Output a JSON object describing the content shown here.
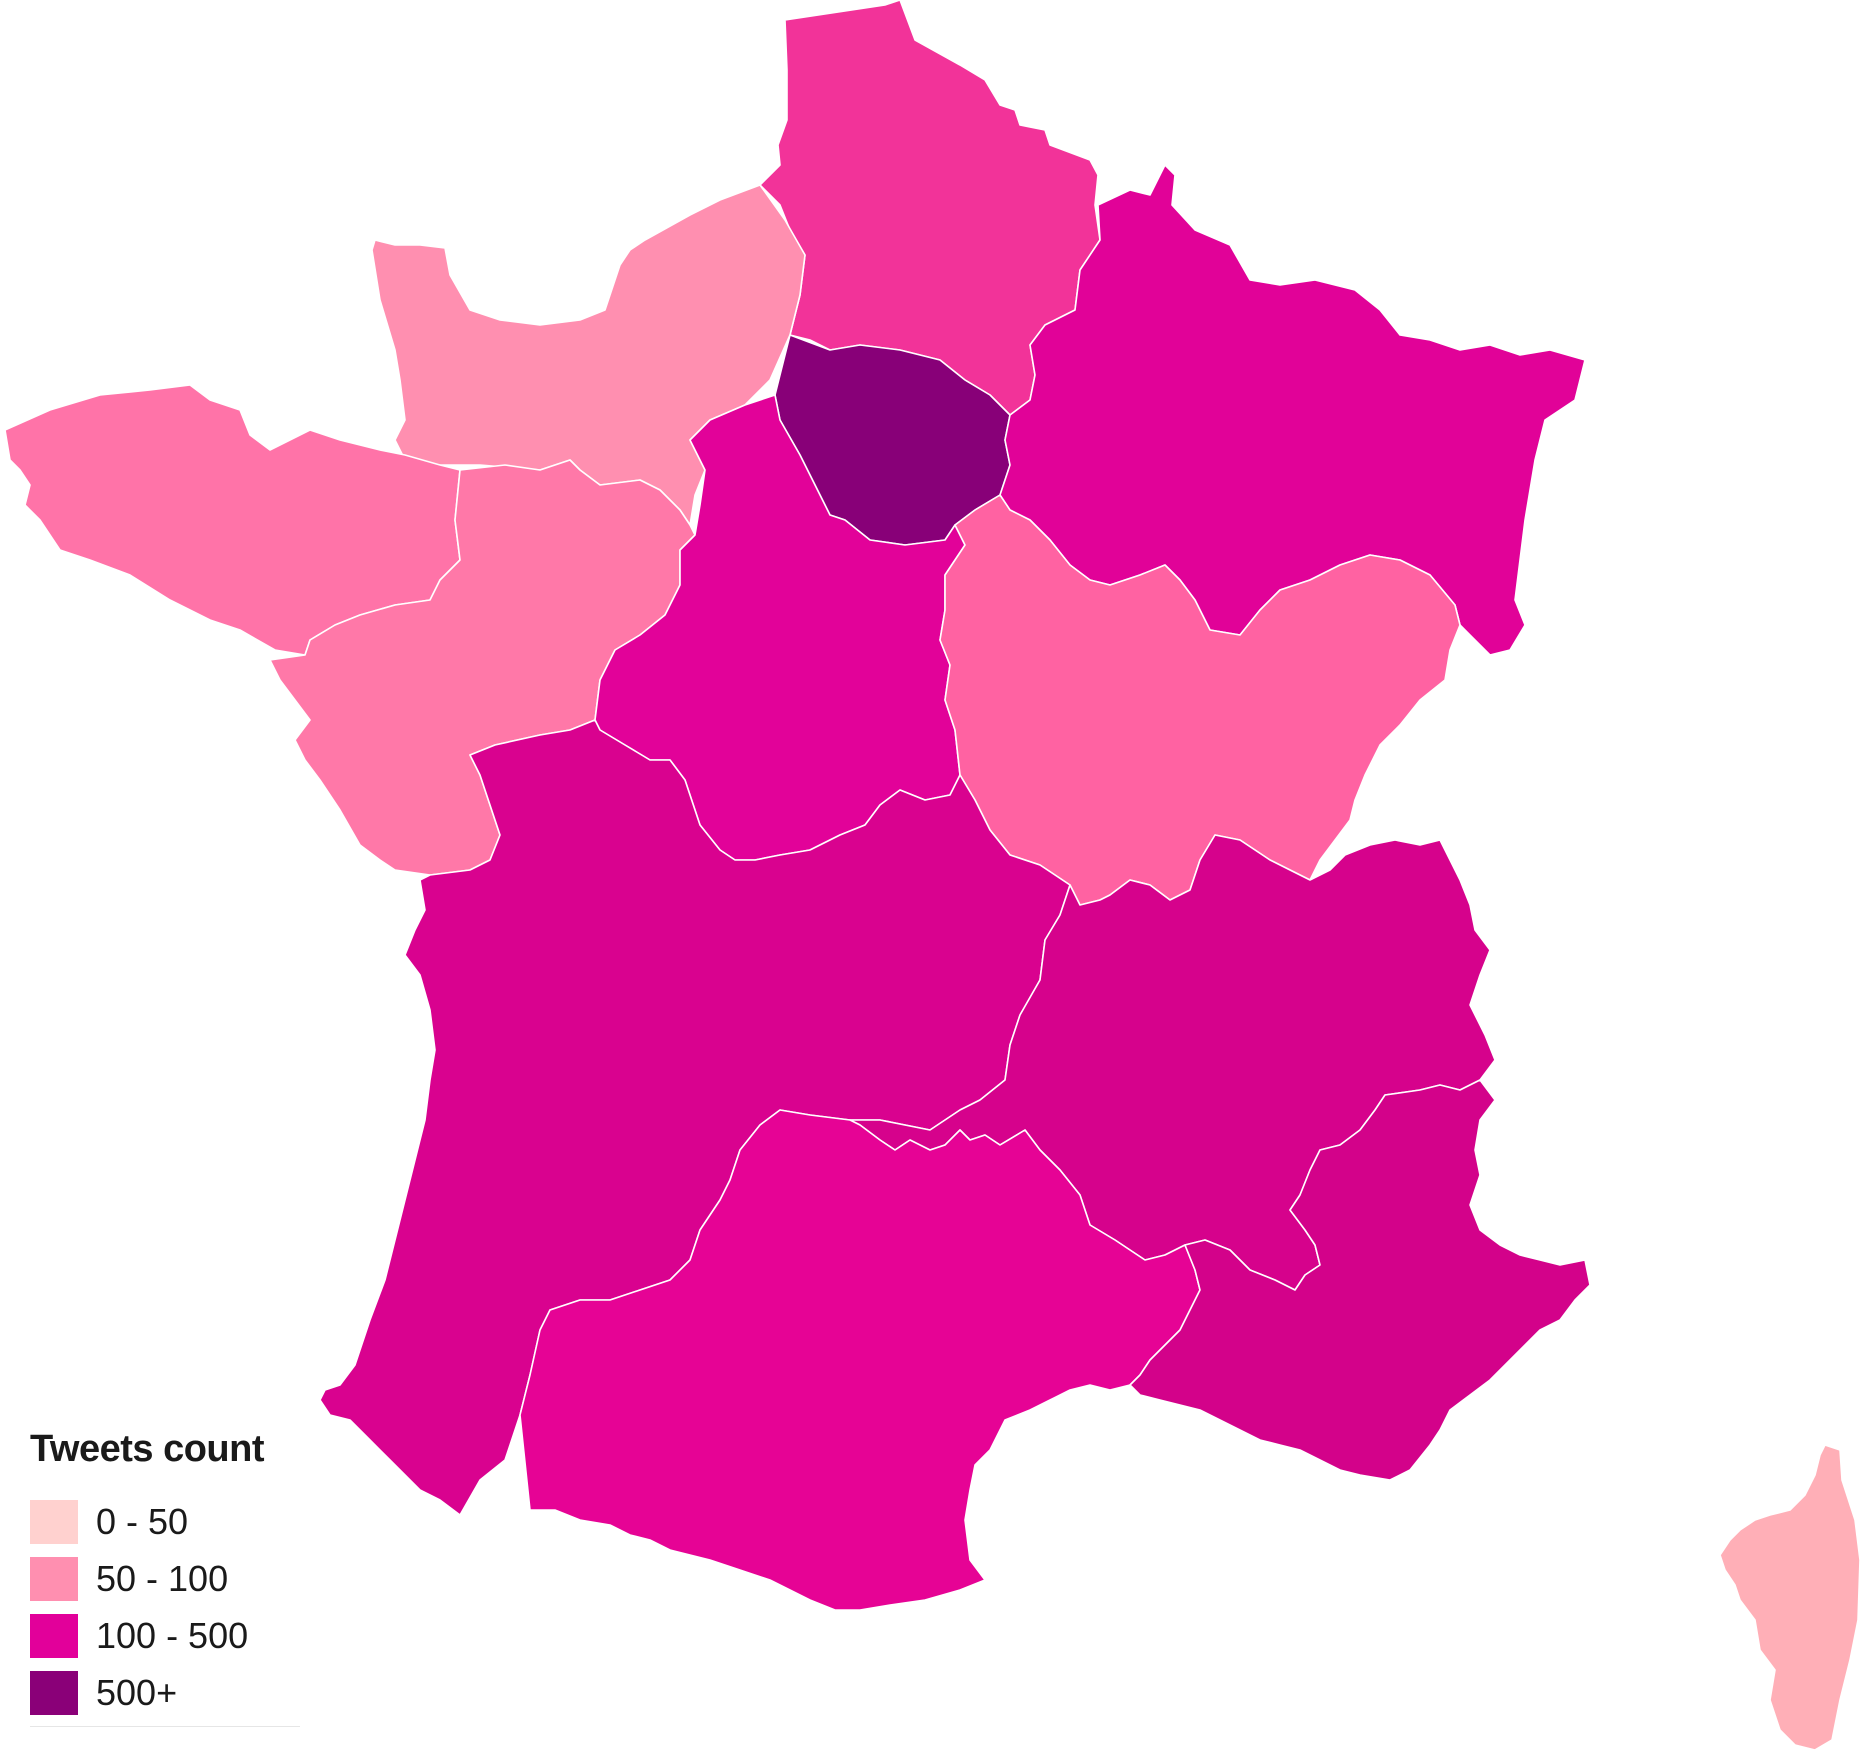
{
  "legend": {
    "title": "Tweets count",
    "classes": [
      {
        "label": "0 - 50",
        "color": "#ffd1cf"
      },
      {
        "label": "50 - 100",
        "color": "#ff8fb0"
      },
      {
        "label": "100 - 500",
        "color": "#e2009a"
      },
      {
        "label": "500+",
        "color": "#8a0078"
      }
    ]
  },
  "regions": [
    {
      "name": "Hauts-de-France",
      "count_class": "100 - 500",
      "color": "#f23399"
    },
    {
      "name": "Normandie",
      "count_class": "50 - 100",
      "color": "#ff8fb0"
    },
    {
      "name": "Bretagne",
      "count_class": "50 - 100",
      "color": "#ff73a8"
    },
    {
      "name": "Pays de la Loire",
      "count_class": "50 - 100",
      "color": "#ff78a8"
    },
    {
      "name": "Île-de-France",
      "count_class": "500+",
      "color": "#880078"
    },
    {
      "name": "Grand Est",
      "count_class": "100 - 500",
      "color": "#e10298"
    },
    {
      "name": "Centre-Val de Loire",
      "count_class": "100 - 500",
      "color": "#e20299"
    },
    {
      "name": "Bourgogne-Franche-Comté",
      "count_class": "50 - 100",
      "color": "#ff62a2"
    },
    {
      "name": "Nouvelle-Aquitaine",
      "count_class": "100 - 500",
      "color": "#d9028f"
    },
    {
      "name": "Auvergne-Rhône-Alpes",
      "count_class": "100 - 500",
      "color": "#d6028c"
    },
    {
      "name": "Occitanie",
      "count_class": "100 - 500",
      "color": "#e60395"
    },
    {
      "name": "Provence-Alpes-Côte d'Azur",
      "count_class": "100 - 500",
      "color": "#d3028a"
    },
    {
      "name": "Corse",
      "count_class": "0 - 50",
      "color": "#ffafb7"
    }
  ]
}
